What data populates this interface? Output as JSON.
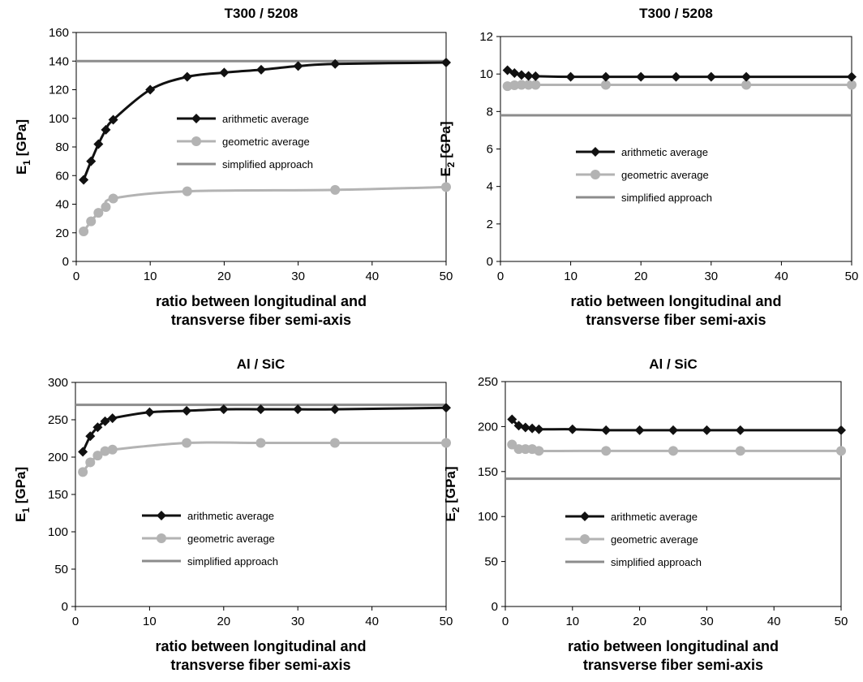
{
  "colors": {
    "arithmetic": "#111111",
    "geometric": "#b3b3b3",
    "simplified": "#8c8c8c"
  },
  "chart_data": [
    {
      "type": "line",
      "title": "T300 / 5208",
      "ylabel_main": "E",
      "ylabel_sub": "1",
      "ylabel_tail": " [GPa]",
      "xlabel_line1": "ratio between longitudinal and",
      "xlabel_line2": "transverse fiber semi-axis",
      "xlim": [
        0,
        50
      ],
      "ylim": [
        0,
        160
      ],
      "xticks": [
        0,
        10,
        20,
        30,
        40,
        50
      ],
      "yticks": [
        0,
        20,
        40,
        60,
        80,
        100,
        120,
        140,
        160
      ],
      "grid": false,
      "legend_position": "center-right",
      "series": [
        {
          "name": "arithmetic average",
          "marker": "diamond",
          "x": [
            1,
            2,
            3,
            4,
            5,
            10,
            15,
            20,
            25,
            30,
            35,
            50
          ],
          "y": [
            57,
            70,
            82,
            92,
            99,
            120,
            129,
            132,
            134,
            136.5,
            138,
            139
          ]
        },
        {
          "name": "geometric average",
          "marker": "circle",
          "x": [
            1,
            2,
            3,
            4,
            5,
            15,
            35,
            50
          ],
          "y": [
            21,
            28,
            34,
            38,
            44,
            49,
            50,
            52
          ]
        },
        {
          "name": "simplified approach",
          "marker": "none",
          "x": [
            0,
            50
          ],
          "y": [
            140,
            140
          ]
        }
      ]
    },
    {
      "type": "line",
      "title": "T300 / 5208",
      "ylabel_main": "E",
      "ylabel_sub": "2",
      "ylabel_tail": " [GPa]",
      "xlabel_line1": "ratio between longitudinal and",
      "xlabel_line2": "transverse fiber semi-axis",
      "xlim": [
        0,
        50
      ],
      "ylim": [
        0,
        12
      ],
      "xticks": [
        0,
        10,
        20,
        30,
        40,
        50
      ],
      "yticks": [
        0,
        2,
        4,
        6,
        8,
        10,
        12
      ],
      "grid": false,
      "legend_position": "center",
      "series": [
        {
          "name": "arithmetic average",
          "marker": "diamond",
          "x": [
            1,
            2,
            3,
            4,
            5,
            10,
            15,
            20,
            25,
            30,
            35,
            50
          ],
          "y": [
            10.2,
            10.05,
            9.95,
            9.9,
            9.88,
            9.85,
            9.85,
            9.85,
            9.85,
            9.85,
            9.85,
            9.85
          ]
        },
        {
          "name": "geometric average",
          "marker": "circle",
          "x": [
            1,
            2,
            3,
            4,
            5,
            15,
            35,
            50
          ],
          "y": [
            9.35,
            9.4,
            9.42,
            9.42,
            9.42,
            9.42,
            9.42,
            9.42
          ]
        },
        {
          "name": "simplified approach",
          "marker": "none",
          "x": [
            0,
            50
          ],
          "y": [
            7.8,
            7.8
          ]
        }
      ]
    },
    {
      "type": "line",
      "title": "Al / SiC",
      "ylabel_main": "E",
      "ylabel_sub": "1",
      "ylabel_tail": " [GPa]",
      "xlabel_line1": "ratio between longitudinal and",
      "xlabel_line2": "transverse fiber semi-axis",
      "xlim": [
        0,
        50
      ],
      "ylim": [
        0,
        300
      ],
      "xticks": [
        0,
        10,
        20,
        30,
        40,
        50
      ],
      "yticks": [
        0,
        50,
        100,
        150,
        200,
        250,
        300
      ],
      "grid": false,
      "legend_position": "center",
      "series": [
        {
          "name": "arithmetic average",
          "marker": "diamond",
          "x": [
            1,
            2,
            3,
            4,
            5,
            10,
            15,
            20,
            25,
            30,
            35,
            50
          ],
          "y": [
            207,
            228,
            240,
            248,
            252,
            260,
            262,
            264,
            264,
            264,
            264,
            266
          ]
        },
        {
          "name": "geometric average",
          "marker": "circle",
          "x": [
            1,
            2,
            3,
            4,
            5,
            15,
            25,
            35,
            50
          ],
          "y": [
            180,
            193,
            202,
            208,
            210,
            219,
            219,
            219,
            219
          ]
        },
        {
          "name": "simplified approach",
          "marker": "none",
          "x": [
            0,
            50
          ],
          "y": [
            270,
            270
          ]
        }
      ]
    },
    {
      "type": "line",
      "title": "Al / SiC",
      "ylabel_main": "E",
      "ylabel_sub": "2",
      "ylabel_tail": " [GPa]",
      "xlabel_line1": "ratio between longitudinal and",
      "xlabel_line2": "transverse fiber semi-axis",
      "xlim": [
        0,
        50
      ],
      "ylim": [
        0,
        250
      ],
      "xticks": [
        0,
        10,
        20,
        30,
        40,
        50
      ],
      "yticks": [
        0,
        50,
        100,
        150,
        200,
        250
      ],
      "grid": false,
      "legend_position": "center",
      "series": [
        {
          "name": "arithmetic average",
          "marker": "diamond",
          "x": [
            1,
            2,
            3,
            4,
            5,
            10,
            15,
            20,
            25,
            30,
            35,
            50
          ],
          "y": [
            208,
            201,
            199,
            198,
            197,
            197,
            196,
            196,
            196,
            196,
            196,
            196
          ]
        },
        {
          "name": "geometric average",
          "marker": "circle",
          "x": [
            1,
            2,
            3,
            4,
            5,
            15,
            25,
            35,
            50
          ],
          "y": [
            180,
            175,
            175,
            175,
            173,
            173,
            173,
            173,
            173
          ]
        },
        {
          "name": "simplified approach",
          "marker": "none",
          "x": [
            0,
            50
          ],
          "y": [
            142,
            142
          ]
        }
      ]
    }
  ]
}
